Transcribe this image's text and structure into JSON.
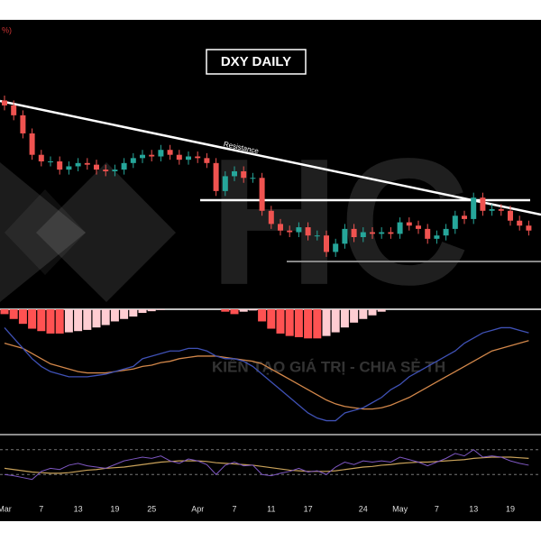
{
  "chart_data": {
    "type": "candlestick",
    "title": "DXY DAILY",
    "corner_text": "%)",
    "annotation": "Resistance",
    "watermark": {
      "logo": "HC",
      "tagline": "KIẾN TẠO GIÁ TRỊ - CHIA SẺ TH"
    },
    "categories": [
      "Mar",
      null,
      null,
      null,
      "7",
      null,
      null,
      null,
      "13",
      null,
      null,
      null,
      "19",
      null,
      null,
      null,
      "25",
      null,
      null,
      null,
      null,
      "Apr",
      null,
      null,
      null,
      "7",
      null,
      null,
      null,
      "11",
      null,
      null,
      null,
      "17",
      null,
      null,
      null,
      null,
      null,
      "24",
      null,
      null,
      null,
      "May",
      null,
      null,
      null,
      "7",
      null,
      null,
      null,
      "13",
      null,
      null,
      null,
      "19",
      null,
      null
    ],
    "open": [
      107.6,
      107.3,
      106.7,
      105.6,
      104.3,
      103.9,
      103.9,
      103.4,
      103.6,
      103.8,
      103.7,
      103.4,
      103.3,
      103.4,
      103.8,
      104.1,
      104.3,
      104.2,
      104.6,
      104.3,
      104.0,
      104.2,
      104.1,
      103.8,
      102.1,
      103.0,
      103.3,
      102.9,
      102.9,
      100.9,
      100.1,
      99.7,
      99.6,
      99.9,
      99.4,
      99.4,
      98.4,
      98.9,
      99.8,
      99.3,
      99.6,
      99.5,
      99.6,
      99.5,
      100.2,
      100.0,
      99.8,
      99.2,
      99.4,
      99.8,
      100.6,
      100.4,
      101.7,
      100.9,
      101.0,
      100.9,
      100.3,
      100.0
    ],
    "high": [
      107.9,
      107.6,
      107.0,
      105.9,
      104.6,
      104.2,
      104.2,
      103.9,
      104.1,
      104.1,
      104.0,
      103.7,
      103.7,
      104.1,
      104.4,
      104.6,
      104.6,
      104.9,
      104.9,
      104.6,
      104.5,
      104.5,
      104.4,
      104.1,
      103.3,
      103.6,
      103.6,
      103.2,
      103.2,
      101.2,
      100.4,
      100.0,
      100.2,
      100.2,
      99.7,
      99.7,
      99.2,
      100.1,
      100.1,
      99.9,
      99.9,
      99.9,
      99.9,
      100.5,
      100.5,
      100.3,
      100.1,
      99.7,
      100.1,
      100.9,
      100.9,
      102.0,
      102.0,
      101.3,
      101.3,
      101.2,
      100.6,
      100.3
    ],
    "low": [
      107.0,
      106.4,
      105.3,
      104.0,
      103.6,
      103.6,
      103.1,
      103.1,
      103.3,
      103.4,
      103.1,
      103.0,
      103.0,
      103.1,
      103.5,
      103.8,
      103.9,
      103.9,
      104.0,
      103.7,
      103.7,
      103.8,
      103.5,
      101.8,
      101.8,
      102.7,
      102.6,
      102.6,
      100.6,
      99.8,
      99.4,
      99.3,
      99.3,
      99.1,
      99.1,
      98.1,
      98.1,
      98.6,
      99.0,
      99.0,
      99.2,
      99.2,
      99.2,
      99.2,
      99.7,
      99.5,
      98.9,
      98.9,
      99.1,
      99.5,
      100.1,
      100.1,
      100.6,
      100.6,
      100.6,
      100.0,
      99.7,
      99.4
    ],
    "close": [
      107.3,
      106.7,
      105.6,
      104.3,
      103.9,
      103.9,
      103.4,
      103.6,
      103.8,
      103.7,
      103.4,
      103.3,
      103.4,
      103.8,
      104.1,
      104.3,
      104.2,
      104.6,
      104.3,
      104.0,
      104.2,
      104.1,
      103.8,
      102.1,
      103.0,
      103.3,
      102.9,
      102.9,
      100.9,
      100.1,
      99.7,
      99.6,
      99.9,
      99.4,
      99.4,
      98.4,
      98.9,
      99.8,
      99.3,
      99.6,
      99.5,
      99.6,
      99.5,
      100.2,
      100.0,
      99.8,
      99.2,
      99.4,
      99.8,
      100.6,
      100.4,
      101.7,
      100.9,
      101.0,
      100.9,
      100.3,
      100.0,
      99.7
    ],
    "ylim": [
      97,
      108.5
    ],
    "up_color": "#26a69a",
    "down_color": "#ef5350",
    "macd": {
      "histogram": [
        -0.2,
        -0.4,
        -0.6,
        -0.8,
        -0.9,
        -1.0,
        -1.0,
        -0.95,
        -0.9,
        -0.85,
        -0.75,
        -0.65,
        -0.5,
        -0.4,
        -0.3,
        -0.15,
        -0.08,
        -0.03,
        0,
        0,
        0,
        0,
        0,
        0,
        -0.1,
        -0.2,
        -0.1,
        -0.05,
        -0.5,
        -0.8,
        -1.0,
        -1.1,
        -1.15,
        -1.2,
        -1.2,
        -1.1,
        -0.95,
        -0.75,
        -0.55,
        -0.4,
        -0.25,
        -0.1,
        0,
        0,
        0,
        0,
        0,
        0,
        0,
        0,
        0,
        0,
        0,
        0,
        0,
        0,
        0,
        0
      ],
      "hist_ylim": [
        -1.3,
        0
      ],
      "growing_color": "#ff5252",
      "fading_color": "#ffcdd2",
      "macd": [
        1.8,
        1.4,
        1.0,
        0.6,
        0.3,
        0.1,
        0.0,
        -0.1,
        -0.1,
        -0.1,
        -0.05,
        0,
        0.1,
        0.2,
        0.3,
        0.6,
        0.7,
        0.8,
        0.9,
        0.9,
        1.0,
        1.0,
        0.9,
        0.7,
        0.6,
        0.6,
        0.5,
        0.3,
        0.0,
        -0.3,
        -0.6,
        -0.9,
        -1.2,
        -1.5,
        -1.7,
        -1.8,
        -1.8,
        -1.5,
        -1.4,
        -1.3,
        -1.1,
        -0.9,
        -0.6,
        -0.4,
        -0.1,
        0.1,
        0.3,
        0.5,
        0.7,
        0.9,
        1.2,
        1.4,
        1.6,
        1.7,
        1.8,
        1.8,
        1.7,
        1.6
      ],
      "signal": [
        1.2,
        1.1,
        1.0,
        0.8,
        0.6,
        0.4,
        0.3,
        0.2,
        0.1,
        0.05,
        0.05,
        0.05,
        0.1,
        0.15,
        0.2,
        0.3,
        0.35,
        0.45,
        0.5,
        0.6,
        0.65,
        0.7,
        0.7,
        0.7,
        0.65,
        0.6,
        0.55,
        0.5,
        0.4,
        0.2,
        0.0,
        -0.2,
        -0.4,
        -0.6,
        -0.8,
        -1.0,
        -1.15,
        -1.25,
        -1.3,
        -1.35,
        -1.35,
        -1.3,
        -1.2,
        -1.05,
        -0.9,
        -0.7,
        -0.5,
        -0.3,
        -0.1,
        0.1,
        0.3,
        0.5,
        0.7,
        0.9,
        1.0,
        1.1,
        1.2,
        1.3
      ],
      "ylim": [
        -2.2,
        2.2
      ],
      "macd_color": "#3f51b5",
      "signal_color": "#d2874a"
    },
    "rsi": {
      "values": [
        30,
        28,
        25,
        22,
        35,
        40,
        38,
        45,
        48,
        44,
        42,
        40,
        46,
        52,
        55,
        58,
        56,
        60,
        52,
        48,
        55,
        52,
        46,
        30,
        45,
        50,
        44,
        45,
        30,
        28,
        32,
        35,
        40,
        34,
        36,
        30,
        42,
        50,
        46,
        52,
        50,
        52,
        50,
        58,
        54,
        50,
        44,
        50,
        56,
        64,
        60,
        70,
        58,
        60,
        58,
        52,
        48,
        45
      ],
      "ma": [
        40,
        38,
        36,
        34,
        33,
        32,
        32,
        33,
        35,
        37,
        38,
        40,
        41,
        42,
        44,
        46,
        48,
        50,
        51,
        52,
        52,
        52,
        51,
        49,
        48,
        47,
        46,
        45,
        43,
        41,
        39,
        37,
        36,
        35,
        35,
        35,
        36,
        38,
        40,
        42,
        43,
        45,
        46,
        48,
        49,
        50,
        50,
        51,
        52,
        53,
        54,
        56,
        57,
        58,
        58,
        58,
        57,
        56
      ],
      "levels": [
        70,
        30
      ],
      "ylim": [
        10,
        90
      ],
      "color": "#7e57c2",
      "ma_color": "#c9a25a"
    }
  }
}
